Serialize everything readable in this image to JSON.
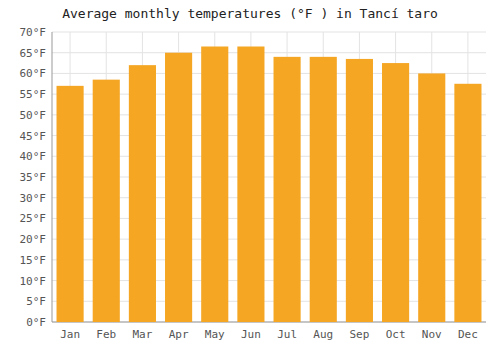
{
  "chart_data": {
    "type": "bar",
    "title": "Average monthly temperatures (°F ) in Tancí taro",
    "categories": [
      "Jan",
      "Feb",
      "Mar",
      "Apr",
      "May",
      "Jun",
      "Jul",
      "Aug",
      "Sep",
      "Oct",
      "Nov",
      "Dec"
    ],
    "values": [
      57.0,
      58.5,
      62.0,
      65.0,
      66.5,
      66.5,
      64.0,
      64.0,
      63.5,
      62.5,
      60.0,
      57.5
    ],
    "color": "#F5A623",
    "ylim": [
      0,
      70
    ],
    "yticks": [
      {
        "value": 0,
        "label": "0°F"
      },
      {
        "value": 5,
        "label": "5°F"
      },
      {
        "value": 10,
        "label": "10°F"
      },
      {
        "value": 15,
        "label": "15°F"
      },
      {
        "value": 20,
        "label": "20°F"
      },
      {
        "value": 25,
        "label": "25°F"
      },
      {
        "value": 30,
        "label": "30°F"
      },
      {
        "value": 35,
        "label": "35°F"
      },
      {
        "value": 40,
        "label": "40°F"
      },
      {
        "value": 45,
        "label": "45°F"
      },
      {
        "value": 50,
        "label": "50°F"
      },
      {
        "value": 55,
        "label": "55°F"
      },
      {
        "value": 60,
        "label": "60°F"
      },
      {
        "value": 65,
        "label": "65°F"
      },
      {
        "value": 70,
        "label": "70°F"
      }
    ],
    "grid": true
  }
}
